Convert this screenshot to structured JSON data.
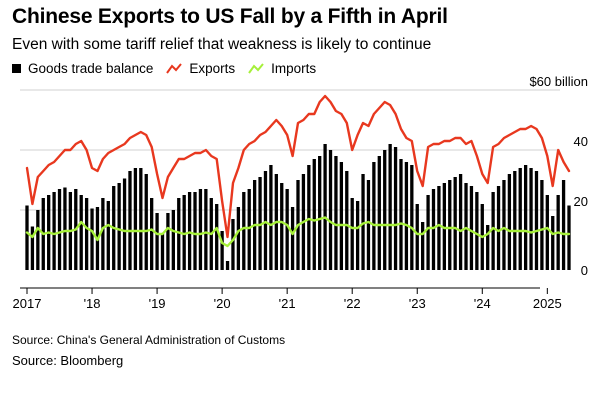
{
  "title": "Chinese Exports to US Fall by a Fifth in April",
  "subtitle": "Even with some tariff relief that weakness is likely to continue",
  "legend": [
    {
      "label": "Goods trade balance",
      "color": "#000000",
      "kind": "box"
    },
    {
      "label": "Exports",
      "color": "#e8381f",
      "kind": "line"
    },
    {
      "label": "Imports",
      "color": "#a6f03a",
      "kind": "line"
    }
  ],
  "source_customs": "Source: China's General Administration of Customs",
  "source_bloomberg": "Source: Bloomberg",
  "chart_data": {
    "type": "bar",
    "title": "Chinese Exports to US Fall by a Fifth in April",
    "unit_label": "$60 billion",
    "y_ticks": [
      "$60 billion",
      "40",
      "20",
      "0"
    ],
    "ylim": [
      0,
      60
    ],
    "x_tick_labels": [
      "2017",
      "'18",
      "'19",
      "'20",
      "'21",
      "'22",
      "'23",
      "'24",
      "2025"
    ],
    "x_start": "2017-01",
    "x_end": "2025-04",
    "grid": true,
    "series": [
      {
        "name": "Goods trade balance",
        "type": "bar",
        "color": "#000000",
        "values": [
          21.5,
          14.5,
          20,
          24,
          25,
          26,
          27,
          27.5,
          26,
          27,
          25,
          24,
          20.5,
          21,
          24,
          23,
          28,
          29,
          30.5,
          33,
          34,
          34,
          32,
          24,
          19,
          12,
          19,
          20,
          24,
          25,
          26,
          26,
          27,
          27,
          24,
          22,
          13,
          3,
          17,
          21,
          26,
          27,
          30,
          31,
          33,
          35,
          32,
          29,
          27,
          21,
          30,
          32,
          35,
          37,
          38,
          42,
          40,
          38,
          36,
          33,
          24,
          23,
          32,
          30,
          36,
          38,
          40,
          42,
          41,
          37,
          36,
          35,
          22,
          16,
          25,
          27,
          28,
          29,
          30,
          31,
          32,
          29,
          28,
          26,
          22,
          15,
          26,
          28,
          30,
          32,
          33,
          34,
          35,
          34,
          33,
          30,
          25,
          18,
          25,
          30,
          21.5
        ]
      },
      {
        "name": "Exports",
        "type": "line",
        "color": "#e8381f",
        "values": [
          34,
          22,
          31,
          33,
          35,
          36,
          38,
          40,
          40,
          42,
          43,
          40,
          34,
          33,
          37,
          39,
          40,
          41,
          42,
          44,
          45,
          46,
          45,
          41,
          32,
          24,
          31,
          34,
          37,
          37,
          38,
          39,
          39,
          40,
          38,
          37,
          23,
          11,
          29,
          34,
          40,
          42,
          43,
          45,
          46,
          48,
          50,
          48,
          45,
          38,
          49,
          50,
          52,
          52,
          56,
          58,
          56,
          53,
          52,
          49,
          40,
          45,
          49,
          48,
          52,
          54,
          56,
          55,
          52,
          47,
          44,
          43,
          33,
          28,
          41,
          42,
          42,
          43,
          43,
          44,
          44,
          42,
          43,
          38,
          32,
          29,
          41,
          42,
          44,
          45,
          46,
          47,
          47,
          48,
          47,
          44,
          38,
          28,
          40,
          36,
          33
        ]
      },
      {
        "name": "Imports",
        "type": "line",
        "color": "#a6f03a",
        "values": [
          12.5,
          11,
          14,
          12,
          12.5,
          12,
          12.5,
          13,
          13,
          13.5,
          16,
          14,
          13,
          10,
          14,
          15,
          14,
          13.5,
          13,
          13,
          13,
          13,
          13,
          13.5,
          12,
          12,
          14,
          13,
          12.5,
          12,
          12.5,
          12,
          12,
          12.5,
          12,
          14,
          9,
          8,
          10,
          13,
          14,
          14,
          15,
          15,
          16,
          15,
          16,
          16,
          15,
          12,
          15,
          16,
          17,
          16.5,
          17,
          17.5,
          16,
          15,
          15,
          15,
          14,
          14,
          15.5,
          16,
          15,
          15,
          15,
          15,
          15,
          15.5,
          15,
          14,
          12,
          12,
          14,
          14,
          15,
          14,
          14,
          14,
          13,
          14,
          13,
          12,
          11,
          12,
          14,
          13,
          14,
          13,
          13,
          13,
          13,
          12.5,
          13,
          13.5,
          14,
          12,
          12.5,
          12,
          12
        ]
      }
    ]
  }
}
